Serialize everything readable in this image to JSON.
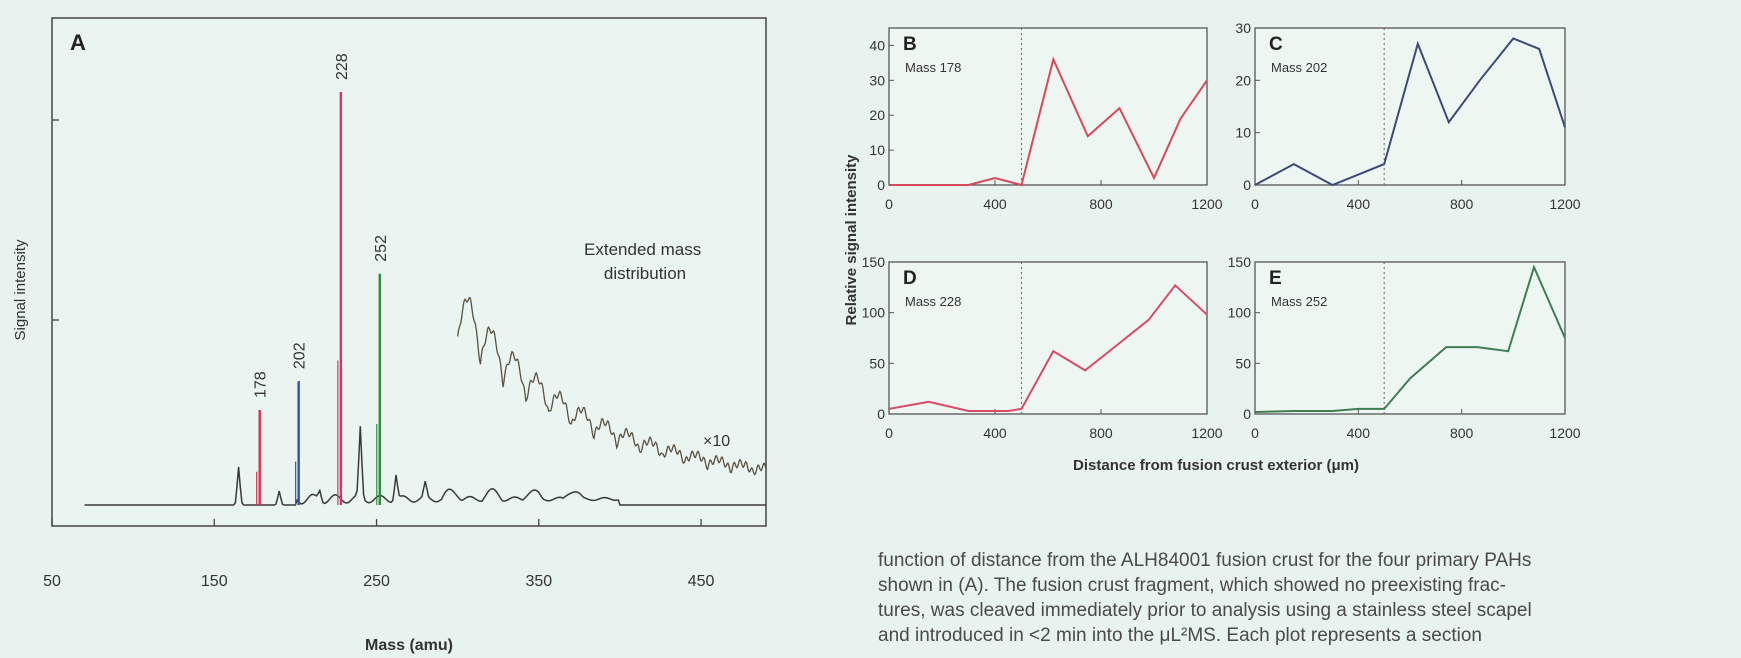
{
  "chart_data": [
    {
      "panel": "A",
      "type": "line",
      "title": "",
      "xlabel": "Mass (amu)",
      "ylabel": "Signal intensity",
      "xlim": [
        50,
        490
      ],
      "x_ticks": [
        50,
        150,
        250,
        350,
        450
      ],
      "grid": false,
      "peaks": [
        {
          "label": "178",
          "x": 178,
          "height": 0.23,
          "color": "#d9304f"
        },
        {
          "label": "202",
          "x": 202,
          "height": 0.3,
          "color": "#3a4ea8"
        },
        {
          "label": "228",
          "x": 228,
          "height": 1.0,
          "color": "#e0306a"
        },
        {
          "label": "252",
          "x": 252,
          "height": 0.56,
          "color": "#2e8a3a"
        }
      ],
      "annotations": [
        "Extended mass distribution",
        "×10"
      ]
    },
    {
      "panel": "B",
      "type": "line",
      "title": "Mass 178",
      "color": "#d84a5a",
      "xlim": [
        0,
        1200
      ],
      "ylim": [
        0,
        45
      ],
      "x_ticks": [
        0,
        400,
        800,
        1200
      ],
      "y_ticks": [
        0,
        10,
        20,
        30,
        40
      ],
      "boundary_x": 500,
      "x": [
        0,
        150,
        300,
        400,
        450,
        500,
        620,
        750,
        870,
        1000,
        1100,
        1200
      ],
      "y": [
        0,
        0,
        0,
        2,
        1,
        0,
        36,
        14,
        22,
        2,
        19,
        30
      ]
    },
    {
      "panel": "C",
      "type": "line",
      "title": "Mass 202",
      "color": "#3c4a78",
      "xlim": [
        0,
        1200
      ],
      "ylim": [
        0,
        30
      ],
      "x_ticks": [
        0,
        400,
        800,
        1200
      ],
      "y_ticks": [
        0,
        10,
        20,
        30
      ],
      "boundary_x": 500,
      "x": [
        0,
        150,
        300,
        500,
        630,
        750,
        870,
        1000,
        1100,
        1200
      ],
      "y": [
        0,
        4,
        0,
        4,
        27,
        12,
        20,
        28,
        26,
        11
      ]
    },
    {
      "panel": "D",
      "type": "line",
      "title": "Mass 228",
      "color": "#d84a68",
      "xlim": [
        0,
        1200
      ],
      "ylim": [
        0,
        150
      ],
      "x_ticks": [
        0,
        400,
        800,
        1200
      ],
      "y_ticks": [
        0,
        50,
        100,
        150
      ],
      "boundary_x": 500,
      "x": [
        0,
        150,
        300,
        450,
        500,
        620,
        740,
        870,
        980,
        1080,
        1200
      ],
      "y": [
        5,
        12,
        3,
        3,
        5,
        62,
        43,
        70,
        93,
        127,
        98
      ]
    },
    {
      "panel": "E",
      "type": "line",
      "title": "Mass 252",
      "color": "#3e7e52",
      "xlim": [
        0,
        1200
      ],
      "ylim": [
        0,
        150
      ],
      "x_ticks": [
        0,
        400,
        800,
        1200
      ],
      "y_ticks": [
        0,
        50,
        100,
        150
      ],
      "boundary_x": 500,
      "x": [
        0,
        150,
        300,
        400,
        500,
        600,
        740,
        860,
        980,
        1080,
        1200
      ],
      "y": [
        2,
        3,
        3,
        5,
        5,
        35,
        66,
        66,
        62,
        145,
        75
      ]
    }
  ],
  "shared": {
    "ylabel": "Relative signal intensity",
    "xlabel": "Distance from fusion crust exterior (μm)"
  },
  "caption": [
    "function of distance from the ALH84001 fusion crust for the four primary PAHs",
    "shown in (A). The fusion crust fragment, which showed no preexisting frac-",
    "tures, was cleaved immediately prior to analysis using a stainless steel scapel",
    "and introduced in <2 min into the μL²MS. Each plot represents a section"
  ]
}
